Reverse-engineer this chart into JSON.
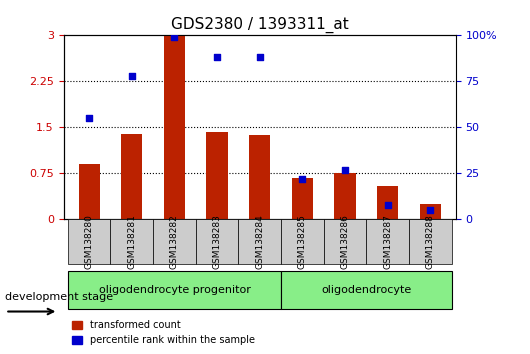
{
  "title": "GDS2380 / 1393311_at",
  "samples": [
    "GSM138280",
    "GSM138281",
    "GSM138282",
    "GSM138283",
    "GSM138284",
    "GSM138285",
    "GSM138286",
    "GSM138287",
    "GSM138288"
  ],
  "red_values": [
    0.9,
    1.4,
    3.0,
    1.42,
    1.37,
    0.68,
    0.76,
    0.55,
    0.25
  ],
  "blue_values": [
    55,
    78,
    99,
    88,
    88,
    22,
    27,
    8,
    5
  ],
  "ylim_left": [
    0,
    3.0
  ],
  "ylim_right": [
    0,
    100
  ],
  "yticks_left": [
    0,
    0.75,
    1.5,
    2.25,
    3.0
  ],
  "ytick_labels_left": [
    "0",
    "0.75",
    "1.5",
    "2.25",
    "3"
  ],
  "yticks_right": [
    0,
    25,
    50,
    75,
    100
  ],
  "ytick_labels_right": [
    "0",
    "25",
    "50",
    "75",
    "100%"
  ],
  "group1_label": "oligodendrocyte progenitor",
  "group2_label": "oligodendrocyte",
  "group1_indices": [
    0,
    1,
    2,
    3,
    4
  ],
  "group2_indices": [
    5,
    6,
    7,
    8
  ],
  "bar_color": "#bb2200",
  "dot_color": "#0000cc",
  "bar_width": 0.5,
  "legend_red": "transformed count",
  "legend_blue": "percentile rank within the sample",
  "xlabel_color_left": "#cc0000",
  "xlabel_color_right": "#0000cc",
  "grid_color": "#000000",
  "tick_area_color": "#cccccc",
  "group_box_color": "#88ee88",
  "dev_stage_label": "development stage"
}
